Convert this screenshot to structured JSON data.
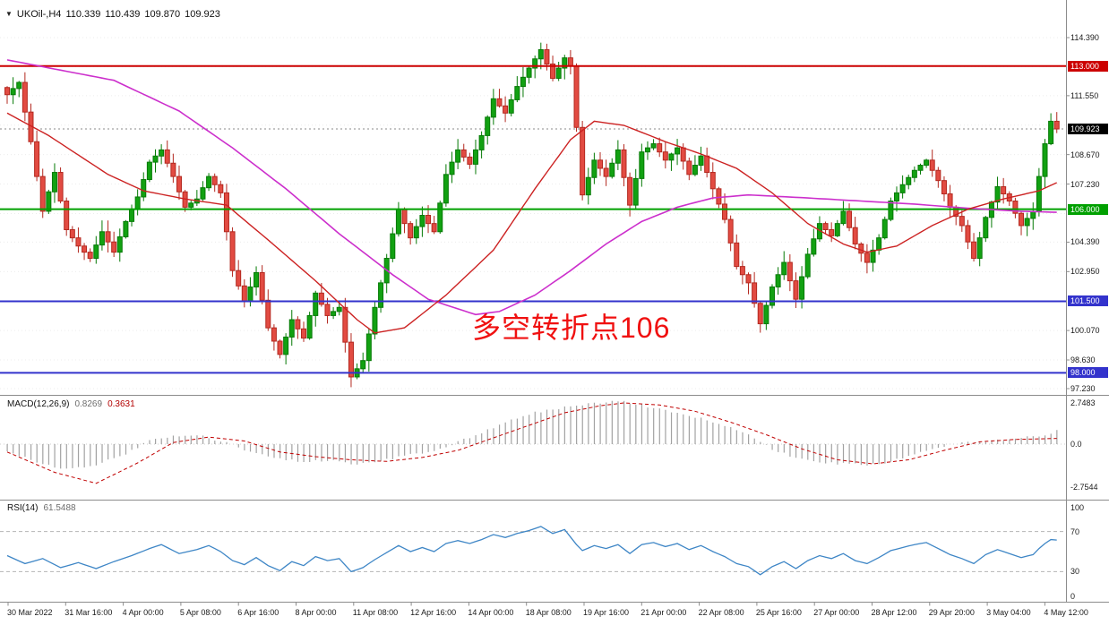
{
  "header": {
    "symbol_period": "UKOil-,H4",
    "open": "110.339",
    "high": "110.439",
    "low": "109.870",
    "close": "109.923"
  },
  "annotation": {
    "text": "多空转折点106"
  },
  "indicators": {
    "macd": {
      "name": "MACD(12,26,9)",
      "value": "0.8269",
      "signal": "0.3631"
    },
    "rsi": {
      "name": "RSI(14)",
      "value": "61.5488"
    }
  },
  "colors": {
    "up": "#12a112",
    "up_stroke": "#067a06",
    "down": "#e24b42",
    "down_stroke": "#b3281f",
    "ma_fast": "#cc2222",
    "ma_slow": "#cc2fcc",
    "macd_hist": "#a2a2a2",
    "macd_signal": "#c00000",
    "rsi_line": "#3e86c6",
    "level_dash": "#b4b4b4",
    "grid": "#ececec",
    "axis_text": "#1a1a1a",
    "panel_border": "#8c8c8c",
    "annotation": "#f01010",
    "current_dash": "#8a8a8a"
  },
  "chart_data": {
    "type": "candlestick",
    "symbol": "UKOil-",
    "timeframe": "H4",
    "bars": 178,
    "ylim": [
      97.23,
      114.39
    ],
    "y_ticks": [
      {
        "price": 114.39,
        "label": "114.390"
      },
      {
        "price": 111.55,
        "label": "111.550"
      },
      {
        "price": 108.67,
        "label": "108.670"
      },
      {
        "price": 107.23,
        "label": "107.230"
      },
      {
        "price": 104.39,
        "label": "104.390"
      },
      {
        "price": 102.95,
        "label": "102.950"
      },
      {
        "price": 100.07,
        "label": "100.070"
      },
      {
        "price": 98.63,
        "label": "98.630"
      },
      {
        "price": 97.23,
        "label": "97.230"
      }
    ],
    "grid_prices": [
      114.39,
      112.97,
      111.55,
      110.11,
      108.67,
      107.23,
      105.79,
      104.39,
      102.95,
      101.51,
      100.07,
      98.63,
      97.23
    ],
    "hlines": [
      {
        "price": 113.0,
        "label": "113.000",
        "color": "#cc0000",
        "width": 2
      },
      {
        "price": 106.0,
        "label": "106.000",
        "color": "#00a000",
        "width": 2
      },
      {
        "price": 101.5,
        "label": "101.500",
        "color": "#3333cc",
        "width": 2
      },
      {
        "price": 98.0,
        "label": "98.000",
        "color": "#3333cc",
        "width": 2
      }
    ],
    "current": {
      "price": 109.923,
      "label": "109.923",
      "color": "#000000"
    },
    "close_path": [
      [
        0,
        111.6
      ],
      [
        2,
        112.2
      ],
      [
        4,
        109.3
      ],
      [
        6,
        105.9
      ],
      [
        8,
        107.8
      ],
      [
        10,
        105.0
      ],
      [
        12,
        104.2
      ],
      [
        14,
        103.6
      ],
      [
        16,
        104.9
      ],
      [
        18,
        103.9
      ],
      [
        20,
        105.4
      ],
      [
        22,
        106.6
      ],
      [
        24,
        108.3
      ],
      [
        26,
        108.9
      ],
      [
        28,
        107.6
      ],
      [
        30,
        106.1
      ],
      [
        32,
        106.5
      ],
      [
        34,
        107.6
      ],
      [
        36,
        106.8
      ],
      [
        38,
        103.0
      ],
      [
        40,
        101.5
      ],
      [
        42,
        102.9
      ],
      [
        44,
        100.2
      ],
      [
        46,
        98.9
      ],
      [
        48,
        100.6
      ],
      [
        50,
        99.7
      ],
      [
        52,
        101.9
      ],
      [
        54,
        100.8
      ],
      [
        56,
        101.2
      ],
      [
        58,
        97.8
      ],
      [
        60,
        98.6
      ],
      [
        62,
        101.2
      ],
      [
        64,
        103.6
      ],
      [
        66,
        106.0
      ],
      [
        68,
        104.6
      ],
      [
        70,
        105.7
      ],
      [
        72,
        104.9
      ],
      [
        74,
        107.7
      ],
      [
        76,
        108.9
      ],
      [
        78,
        108.2
      ],
      [
        80,
        109.6
      ],
      [
        82,
        111.4
      ],
      [
        84,
        110.7
      ],
      [
        86,
        112.0
      ],
      [
        88,
        112.9
      ],
      [
        90,
        113.8
      ],
      [
        92,
        112.4
      ],
      [
        94,
        113.4
      ],
      [
        95,
        113.0
      ],
      [
        96,
        110.0
      ],
      [
        97,
        106.7
      ],
      [
        99,
        108.4
      ],
      [
        101,
        107.6
      ],
      [
        103,
        108.9
      ],
      [
        105,
        106.2
      ],
      [
        107,
        108.8
      ],
      [
        109,
        109.2
      ],
      [
        111,
        108.4
      ],
      [
        113,
        109.0
      ],
      [
        115,
        107.7
      ],
      [
        117,
        108.6
      ],
      [
        119,
        107.0
      ],
      [
        121,
        105.5
      ],
      [
        123,
        103.2
      ],
      [
        125,
        102.4
      ],
      [
        127,
        100.4
      ],
      [
        129,
        102.2
      ],
      [
        131,
        103.4
      ],
      [
        133,
        101.6
      ],
      [
        135,
        103.8
      ],
      [
        137,
        105.3
      ],
      [
        139,
        104.7
      ],
      [
        141,
        105.9
      ],
      [
        143,
        104.3
      ],
      [
        145,
        103.4
      ],
      [
        147,
        104.6
      ],
      [
        149,
        106.4
      ],
      [
        151,
        107.2
      ],
      [
        153,
        107.9
      ],
      [
        155,
        108.4
      ],
      [
        157,
        107.4
      ],
      [
        159,
        106.1
      ],
      [
        161,
        105.2
      ],
      [
        163,
        103.6
      ],
      [
        165,
        105.6
      ],
      [
        167,
        107.1
      ],
      [
        169,
        106.4
      ],
      [
        171,
        105.2
      ],
      [
        173,
        105.9
      ],
      [
        174,
        107.6
      ],
      [
        175,
        109.2
      ],
      [
        176,
        110.3
      ],
      [
        177,
        109.923
      ]
    ],
    "ma_fast_path": [
      [
        0,
        110.7
      ],
      [
        7,
        109.6
      ],
      [
        17,
        107.7
      ],
      [
        23,
        106.9
      ],
      [
        30,
        106.5
      ],
      [
        37,
        106.2
      ],
      [
        44,
        104.5
      ],
      [
        52,
        102.5
      ],
      [
        59,
        100.6
      ],
      [
        62,
        99.95
      ],
      [
        67,
        100.2
      ],
      [
        74,
        101.8
      ],
      [
        82,
        104.0
      ],
      [
        89,
        107.0
      ],
      [
        95,
        109.4
      ],
      [
        99,
        110.3
      ],
      [
        104,
        110.1
      ],
      [
        111,
        109.3
      ],
      [
        117,
        108.7
      ],
      [
        123,
        108.0
      ],
      [
        129,
        106.8
      ],
      [
        135,
        105.3
      ],
      [
        141,
        104.3
      ],
      [
        145,
        103.9
      ],
      [
        150,
        104.2
      ],
      [
        156,
        105.2
      ],
      [
        162,
        106.0
      ],
      [
        168,
        106.5
      ],
      [
        174,
        106.9
      ],
      [
        177,
        107.3
      ]
    ],
    "ma_slow_path": [
      [
        0,
        113.3
      ],
      [
        18,
        112.3
      ],
      [
        29,
        110.8
      ],
      [
        38,
        109.0
      ],
      [
        47,
        107.0
      ],
      [
        56,
        104.8
      ],
      [
        65,
        102.8
      ],
      [
        71,
        101.6
      ],
      [
        79,
        100.85
      ],
      [
        83,
        101.0
      ],
      [
        89,
        101.8
      ],
      [
        95,
        103.0
      ],
      [
        101,
        104.3
      ],
      [
        107,
        105.4
      ],
      [
        113,
        106.1
      ],
      [
        119,
        106.55
      ],
      [
        125,
        106.7
      ],
      [
        135,
        106.55
      ],
      [
        144,
        106.4
      ],
      [
        153,
        106.25
      ],
      [
        162,
        106.05
      ],
      [
        171,
        105.9
      ],
      [
        177,
        105.85
      ]
    ],
    "macd": {
      "ticks": [
        {
          "v": 2.7483,
          "label": "2.7483"
        },
        {
          "v": 0,
          "label": "0.0"
        },
        {
          "v": -2.7544,
          "label": "-2.7544"
        }
      ],
      "hist_path": [
        [
          0,
          -0.4
        ],
        [
          5,
          -1.2
        ],
        [
          10,
          -1.6
        ],
        [
          15,
          -1.3
        ],
        [
          20,
          -0.6
        ],
        [
          24,
          0.2
        ],
        [
          28,
          0.55
        ],
        [
          33,
          0.5
        ],
        [
          37,
          0.1
        ],
        [
          41,
          -0.5
        ],
        [
          45,
          -0.9
        ],
        [
          50,
          -1.1
        ],
        [
          55,
          -1.0
        ],
        [
          59,
          -1.3
        ],
        [
          63,
          -1.1
        ],
        [
          67,
          -0.7
        ],
        [
          71,
          -0.55
        ],
        [
          74,
          -0.2
        ],
        [
          77,
          0.3
        ],
        [
          81,
          0.9
        ],
        [
          85,
          1.5
        ],
        [
          89,
          2.0
        ],
        [
          93,
          2.3
        ],
        [
          97,
          2.5
        ],
        [
          101,
          2.7
        ],
        [
          103,
          2.75
        ],
        [
          106,
          2.55
        ],
        [
          110,
          2.25
        ],
        [
          114,
          1.9
        ],
        [
          118,
          1.55
        ],
        [
          122,
          1.1
        ],
        [
          126,
          0.4
        ],
        [
          129,
          -0.3
        ],
        [
          133,
          -0.9
        ],
        [
          137,
          -1.2
        ],
        [
          141,
          -1.25
        ],
        [
          145,
          -1.35
        ],
        [
          149,
          -1.1
        ],
        [
          153,
          -0.6
        ],
        [
          157,
          -0.25
        ],
        [
          160,
          0.05
        ],
        [
          163,
          0.15
        ],
        [
          166,
          0.25
        ],
        [
          169,
          0.3
        ],
        [
          172,
          0.45
        ],
        [
          175,
          0.6
        ],
        [
          177,
          0.8269
        ]
      ],
      "signal_path": [
        [
          0,
          -0.5
        ],
        [
          8,
          -1.8
        ],
        [
          15,
          -2.5
        ],
        [
          22,
          -1.2
        ],
        [
          28,
          0.1
        ],
        [
          34,
          0.45
        ],
        [
          40,
          0.2
        ],
        [
          46,
          -0.5
        ],
        [
          52,
          -0.8
        ],
        [
          58,
          -1.0
        ],
        [
          64,
          -1.1
        ],
        [
          70,
          -0.85
        ],
        [
          76,
          -0.4
        ],
        [
          82,
          0.4
        ],
        [
          88,
          1.2
        ],
        [
          94,
          2.0
        ],
        [
          100,
          2.45
        ],
        [
          104,
          2.63
        ],
        [
          110,
          2.5
        ],
        [
          116,
          2.1
        ],
        [
          122,
          1.4
        ],
        [
          128,
          0.6
        ],
        [
          134,
          -0.3
        ],
        [
          140,
          -1.0
        ],
        [
          146,
          -1.26
        ],
        [
          152,
          -1.0
        ],
        [
          158,
          -0.4
        ],
        [
          164,
          0.15
        ],
        [
          170,
          0.3
        ],
        [
          177,
          0.3631
        ]
      ]
    },
    "rsi": {
      "ticks": [
        {
          "v": 100,
          "label": "100"
        },
        {
          "v": 70,
          "label": "70"
        },
        {
          "v": 30,
          "label": "30"
        },
        {
          "v": 0,
          "label": "0"
        }
      ],
      "levels": [
        70,
        30
      ],
      "path": [
        [
          0,
          46
        ],
        [
          3,
          38
        ],
        [
          6,
          43
        ],
        [
          9,
          34
        ],
        [
          12,
          39
        ],
        [
          15,
          33
        ],
        [
          18,
          40
        ],
        [
          21,
          46
        ],
        [
          24,
          53
        ],
        [
          26,
          57
        ],
        [
          29,
          48
        ],
        [
          32,
          52
        ],
        [
          34,
          56
        ],
        [
          36,
          50
        ],
        [
          38,
          41
        ],
        [
          40,
          37
        ],
        [
          42,
          44
        ],
        [
          44,
          36
        ],
        [
          46,
          31
        ],
        [
          48,
          40
        ],
        [
          50,
          36
        ],
        [
          52,
          45
        ],
        [
          54,
          41
        ],
        [
          56,
          43
        ],
        [
          58,
          30
        ],
        [
          60,
          34
        ],
        [
          62,
          42
        ],
        [
          64,
          49
        ],
        [
          66,
          56
        ],
        [
          68,
          50
        ],
        [
          70,
          54
        ],
        [
          72,
          50
        ],
        [
          74,
          58
        ],
        [
          76,
          61
        ],
        [
          78,
          58
        ],
        [
          80,
          62
        ],
        [
          82,
          67
        ],
        [
          84,
          64
        ],
        [
          86,
          68
        ],
        [
          88,
          71
        ],
        [
          90,
          75
        ],
        [
          92,
          68
        ],
        [
          94,
          72
        ],
        [
          96,
          57
        ],
        [
          97,
          51
        ],
        [
          99,
          56
        ],
        [
          101,
          53
        ],
        [
          103,
          57
        ],
        [
          105,
          48
        ],
        [
          107,
          57
        ],
        [
          109,
          59
        ],
        [
          111,
          55
        ],
        [
          113,
          58
        ],
        [
          115,
          52
        ],
        [
          117,
          56
        ],
        [
          119,
          50
        ],
        [
          121,
          45
        ],
        [
          123,
          38
        ],
        [
          125,
          35
        ],
        [
          127,
          27
        ],
        [
          129,
          35
        ],
        [
          131,
          40
        ],
        [
          133,
          33
        ],
        [
          135,
          41
        ],
        [
          137,
          46
        ],
        [
          139,
          43
        ],
        [
          141,
          48
        ],
        [
          143,
          41
        ],
        [
          145,
          38
        ],
        [
          147,
          44
        ],
        [
          149,
          51
        ],
        [
          151,
          54
        ],
        [
          153,
          57
        ],
        [
          155,
          59
        ],
        [
          157,
          53
        ],
        [
          159,
          47
        ],
        [
          161,
          43
        ],
        [
          163,
          38
        ],
        [
          165,
          47
        ],
        [
          167,
          52
        ],
        [
          169,
          48
        ],
        [
          171,
          44
        ],
        [
          173,
          47
        ],
        [
          174,
          53
        ],
        [
          175,
          58
        ],
        [
          176,
          62
        ],
        [
          177,
          61.55
        ]
      ]
    },
    "time_labels": [
      "30 Mar 2022",
      "31 Mar 16:00",
      "4 Apr 00:00",
      "5 Apr 08:00",
      "6 Apr 16:00",
      "8 Apr 00:00",
      "11 Apr 08:00",
      "12 Apr 16:00",
      "14 Apr 00:00",
      "18 Apr 08:00",
      "19 Apr 16:00",
      "21 Apr 00:00",
      "22 Apr 08:00",
      "25 Apr 16:00",
      "27 Apr 00:00",
      "28 Apr 12:00",
      "29 Apr 20:00",
      "3 May 04:00",
      "4 May 12:00"
    ]
  }
}
